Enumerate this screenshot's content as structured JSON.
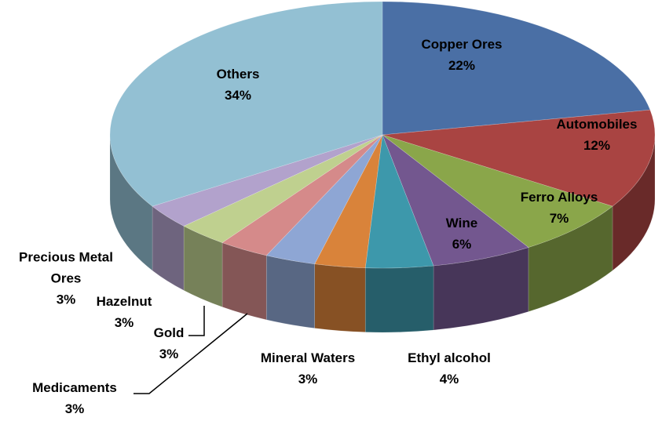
{
  "chart_data": {
    "type": "pie",
    "categories": [
      "Copper Ores",
      "Automobiles",
      "Ferro Alloys",
      "Wine",
      "Ethyl alcohol",
      "Mineral Waters",
      "Medicaments",
      "Gold",
      "Hazelnut",
      "Precious Metal Ores",
      "Others"
    ],
    "values": [
      22,
      12,
      7,
      6,
      4,
      3,
      3,
      3,
      3,
      3,
      34
    ],
    "value_labels": [
      "22%",
      "12%",
      "7%",
      "6%",
      "4%",
      "3%",
      "3%",
      "3%",
      "3%",
      "3%",
      "34%"
    ],
    "colors": [
      "#4a6fa5",
      "#a94442",
      "#8aa64a",
      "#73578f",
      "#3d98ab",
      "#d9833a",
      "#8ea6d4",
      "#d58a8a",
      "#bfd08f",
      "#b2a2cc",
      "#93c0d3"
    ]
  }
}
